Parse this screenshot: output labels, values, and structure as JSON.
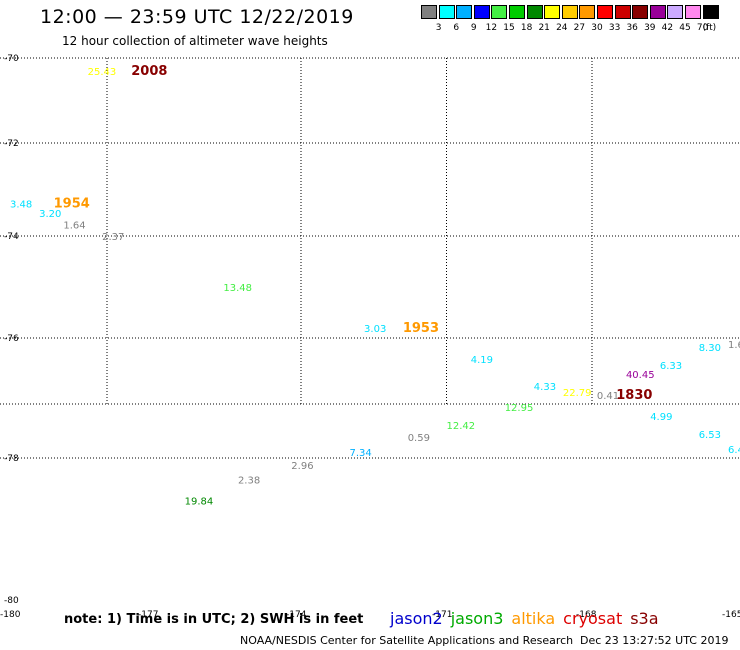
{
  "header": {
    "title": "12:00 — 23:59 UTC 12/22/2019",
    "subtitle": "12 hour collection of altimeter wave heights"
  },
  "legend": {
    "unit": "(ft)",
    "swatches": [
      {
        "color": "#808080",
        "label": "3"
      },
      {
        "color": "#00ffff",
        "label": "6"
      },
      {
        "color": "#00b0ff",
        "label": "9"
      },
      {
        "color": "#0000ff",
        "label": "12"
      },
      {
        "color": "#44ee44",
        "label": "15"
      },
      {
        "color": "#00cc00",
        "label": "18"
      },
      {
        "color": "#008800",
        "label": "21"
      },
      {
        "color": "#ffff00",
        "label": "24"
      },
      {
        "color": "#ffcc00",
        "label": "27"
      },
      {
        "color": "#ff9900",
        "label": "30"
      },
      {
        "color": "#ff0000",
        "label": "33"
      },
      {
        "color": "#cc0000",
        "label": "36"
      },
      {
        "color": "#880000",
        "label": "39"
      },
      {
        "color": "#990099",
        "label": "42"
      },
      {
        "color": "#ccaaff",
        "label": "45"
      },
      {
        "color": "#ff88ee",
        "label": "70"
      },
      {
        "color": "#000000",
        "label": ""
      }
    ]
  },
  "axes": {
    "lat_ticks": [
      {
        "label": "-70",
        "lat": -70
      },
      {
        "label": "-72",
        "lat": -72
      },
      {
        "label": "-74",
        "lat": -74
      },
      {
        "label": "-76",
        "lat": -76
      },
      {
        "label": "-78",
        "lat": -78
      },
      {
        "label": "-80",
        "lat": -80
      }
    ],
    "lon_ticks": [
      {
        "label": "-180",
        "lon": -180
      },
      {
        "label": "-177",
        "lon": -177
      },
      {
        "label": "-174",
        "lon": -174
      },
      {
        "label": "-171",
        "lon": -171
      },
      {
        "label": "-168",
        "lon": -168
      },
      {
        "label": "-165",
        "lon": -165
      }
    ]
  },
  "observations": [
    {
      "text": "25.43",
      "lon": -178.4,
      "lat": -70.3,
      "color": "#ffff00",
      "kind": "swh"
    },
    {
      "text": "2008",
      "lon": -177.5,
      "lat": -70.3,
      "color": "#880000",
      "kind": "time"
    },
    {
      "text": "3.48",
      "lon": -180.0,
      "lat": -73.3,
      "color": "#00e0ff",
      "kind": "swh"
    },
    {
      "text": "1954",
      "lon": -179.1,
      "lat": -73.3,
      "color": "#ff9900",
      "kind": "time"
    },
    {
      "text": "3.20",
      "lon": -179.4,
      "lat": -73.5,
      "color": "#00e0ff",
      "kind": "swh"
    },
    {
      "text": "1.64",
      "lon": -178.9,
      "lat": -73.75,
      "color": "#808080",
      "kind": "swh"
    },
    {
      "text": "2.37",
      "lon": -178.1,
      "lat": -74.0,
      "color": "#808080",
      "kind": "swh"
    },
    {
      "text": "13.48",
      "lon": -175.6,
      "lat": -75.0,
      "color": "#44ee44",
      "kind": "swh"
    },
    {
      "text": "3.03",
      "lon": -172.7,
      "lat": -75.8,
      "color": "#00e0ff",
      "kind": "swh"
    },
    {
      "text": "1953",
      "lon": -171.9,
      "lat": -75.8,
      "color": "#ff9900",
      "kind": "time"
    },
    {
      "text": "4.19",
      "lon": -170.5,
      "lat": -76.35,
      "color": "#00e0ff",
      "kind": "swh"
    },
    {
      "text": "8.30",
      "lon": -165.8,
      "lat": -76.15,
      "color": "#00e0ff",
      "kind": "swh"
    },
    {
      "text": "6.33",
      "lon": -166.6,
      "lat": -76.45,
      "color": "#00e0ff",
      "kind": "swh"
    },
    {
      "text": "40.45",
      "lon": -167.3,
      "lat": -76.6,
      "color": "#990099",
      "kind": "swh"
    },
    {
      "text": "4.33",
      "lon": -169.2,
      "lat": -76.8,
      "color": "#00e0ff",
      "kind": "swh"
    },
    {
      "text": "22.79",
      "lon": -168.6,
      "lat": -76.9,
      "color": "#ffff00",
      "kind": "swh"
    },
    {
      "text": "0.41",
      "lon": -167.9,
      "lat": -76.95,
      "color": "#808080",
      "kind": "swh"
    },
    {
      "text": "1830",
      "lon": -167.5,
      "lat": -76.95,
      "color": "#880000",
      "kind": "time"
    },
    {
      "text": "12.95",
      "lon": -169.8,
      "lat": -77.15,
      "color": "#44ee44",
      "kind": "swh"
    },
    {
      "text": "4.99",
      "lon": -166.8,
      "lat": -77.3,
      "color": "#00e0ff",
      "kind": "swh"
    },
    {
      "text": "12.42",
      "lon": -171.0,
      "lat": -77.45,
      "color": "#44ee44",
      "kind": "swh"
    },
    {
      "text": "6.53",
      "lon": -165.8,
      "lat": -77.6,
      "color": "#00e0ff",
      "kind": "swh"
    },
    {
      "text": "0.59",
      "lon": -171.8,
      "lat": -77.65,
      "color": "#808080",
      "kind": "swh"
    },
    {
      "text": "6.4",
      "lon": -164.8,
      "lat": -77.85,
      "color": "#00e0ff",
      "kind": "swh"
    },
    {
      "text": "7.34",
      "lon": -173.0,
      "lat": -77.9,
      "color": "#00b0ff",
      "kind": "swh"
    },
    {
      "text": "2.96",
      "lon": -174.2,
      "lat": -78.1,
      "color": "#808080",
      "kind": "swh"
    },
    {
      "text": "2.38",
      "lon": -175.3,
      "lat": -78.3,
      "color": "#808080",
      "kind": "swh"
    },
    {
      "text": "19.84",
      "lon": -176.4,
      "lat": -78.6,
      "color": "#008800",
      "kind": "swh"
    },
    {
      "text": "1.6",
      "lon": -164.75,
      "lat": -76.1,
      "color": "#808080",
      "kind": "swh"
    }
  ],
  "footer": {
    "note": "note: 1) Time is in UTC; 2) SWH is in feet",
    "satellites": [
      {
        "name": "jason2",
        "color": "#0000cc"
      },
      {
        "name": "jason3",
        "color": "#00aa00"
      },
      {
        "name": "altika",
        "color": "#ff9900"
      },
      {
        "name": "cryosat",
        "color": "#dd0000"
      },
      {
        "name": "s3a",
        "color": "#880000"
      }
    ],
    "credit": "NOAA/NESDIS Center for Satellite Applications and Research",
    "timestamp": "Dec 23 13:27:52 UTC 2019"
  }
}
